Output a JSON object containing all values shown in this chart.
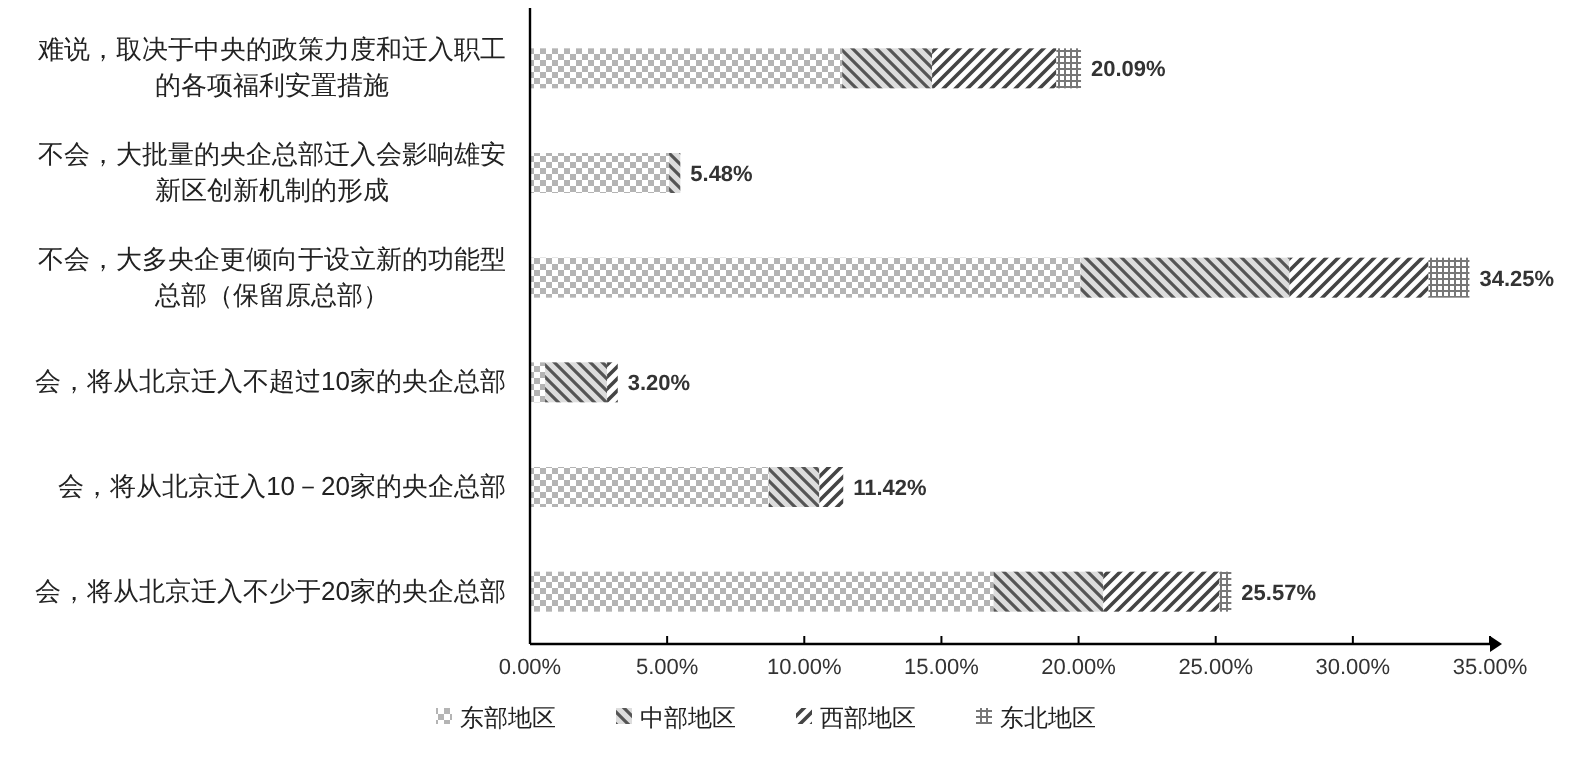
{
  "chart_data": {
    "type": "bar",
    "orientation": "horizontal",
    "stacked": true,
    "categories": [
      "难说，取决于中央的政策力度和迁入职工的各项福利安置措施",
      "不会，大批量的央企总部迁入会影响雄安新区创新机制的形成",
      "不会，大多央企更倾向于设立新的功能型总部（保留原总部）",
      "会，将从北京迁入不超过10家的央企总部",
      "会，将从北京迁入10－20家的央企总部",
      "会，将从北京迁入不少于20家的央企总部"
    ],
    "series": [
      {
        "name": "东部地区",
        "color": "#b4b4b4",
        "values": [
          11.38,
          5.07,
          20.07,
          0.55,
          8.71,
          16.9
        ]
      },
      {
        "name": "中部地区",
        "color": "#555555",
        "values": [
          3.28,
          0.41,
          7.62,
          2.26,
          1.84,
          4.0
        ]
      },
      {
        "name": "西部地区",
        "color": "#444444",
        "values": [
          4.53,
          null,
          5.07,
          0.39,
          0.87,
          4.24
        ]
      },
      {
        "name": "东北地区",
        "color": "#777777",
        "values": [
          0.9,
          null,
          1.49,
          null,
          null,
          0.43
        ]
      }
    ],
    "totals": [
      "20.09%",
      "5.48%",
      "34.25%",
      "3.20%",
      "11.42%",
      "25.57%"
    ],
    "xlim": [
      0,
      35
    ],
    "xticks": [
      {
        "value": 0,
        "label": "0.00%"
      },
      {
        "value": 5,
        "label": "5.00%"
      },
      {
        "value": 10,
        "label": "10.00%"
      },
      {
        "value": 15,
        "label": "15.00%"
      },
      {
        "value": 20,
        "label": "20.00%"
      },
      {
        "value": 25,
        "label": "25.00%"
      },
      {
        "value": 30,
        "label": "30.00%"
      },
      {
        "value": 35,
        "label": "35.00%"
      }
    ],
    "grid": false,
    "legend": "bottom"
  }
}
